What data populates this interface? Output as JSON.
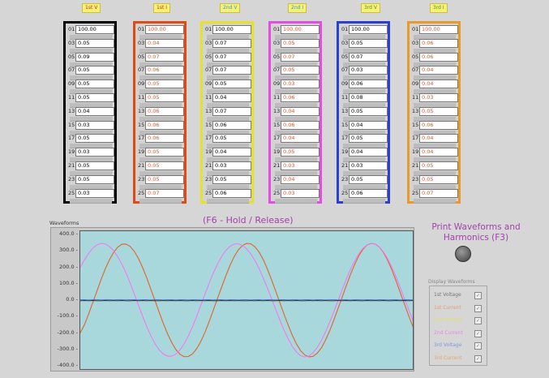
{
  "channels": [
    {
      "key": "v1",
      "label": "1st V",
      "border": "#000000",
      "value_color": "#000000",
      "label_color": "#c23a00",
      "rows": [
        [
          "01",
          "100.00"
        ],
        [
          "03",
          "0.05"
        ],
        [
          "05",
          "0.09"
        ],
        [
          "07",
          "0.05"
        ],
        [
          "09",
          "0.05"
        ],
        [
          "11",
          "0.05"
        ],
        [
          "13",
          "0.04"
        ],
        [
          "15",
          "0.03"
        ],
        [
          "17",
          "0.05"
        ],
        [
          "19",
          "0.03"
        ],
        [
          "21",
          "0.05"
        ],
        [
          "23",
          "0.05"
        ],
        [
          "25",
          "0.03"
        ]
      ]
    },
    {
      "key": "i1",
      "label": "1st I",
      "border": "#e04a16",
      "value_color": "#e2522b",
      "label_color": "#c23a00",
      "rows": [
        [
          "01",
          "100.00"
        ],
        [
          "03",
          "0.04"
        ],
        [
          "05",
          "0.07"
        ],
        [
          "07",
          "0.06"
        ],
        [
          "09",
          "0.05"
        ],
        [
          "11",
          "0.05"
        ],
        [
          "13",
          "0.06"
        ],
        [
          "15",
          "0.06"
        ],
        [
          "17",
          "0.06"
        ],
        [
          "19",
          "0.05"
        ],
        [
          "21",
          "0.05"
        ],
        [
          "23",
          "0.05"
        ],
        [
          "25",
          "0.07"
        ]
      ]
    },
    {
      "key": "v2",
      "label": "2nd V",
      "border": "#e6e12a",
      "value_color": "#000000",
      "label_color": "#2aa0c0",
      "rows": [
        [
          "01",
          "100.00"
        ],
        [
          "03",
          "0.07"
        ],
        [
          "05",
          "0.07"
        ],
        [
          "07",
          "0.07"
        ],
        [
          "09",
          "0.05"
        ],
        [
          "11",
          "0.04"
        ],
        [
          "13",
          "0.07"
        ],
        [
          "15",
          "0.06"
        ],
        [
          "17",
          "0.05"
        ],
        [
          "19",
          "0.04"
        ],
        [
          "21",
          "0.03"
        ],
        [
          "23",
          "0.05"
        ],
        [
          "25",
          "0.06"
        ]
      ]
    },
    {
      "key": "i2",
      "label": "2nd I",
      "border": "#e24fe0",
      "value_color": "#e2522b",
      "label_color": "#2aa0c0",
      "rows": [
        [
          "01",
          "100.00"
        ],
        [
          "03",
          "0.05"
        ],
        [
          "05",
          "0.07"
        ],
        [
          "07",
          "0.05"
        ],
        [
          "09",
          "0.03"
        ],
        [
          "11",
          "0.06"
        ],
        [
          "13",
          "0.04"
        ],
        [
          "15",
          "0.06"
        ],
        [
          "17",
          "0.04"
        ],
        [
          "19",
          "0.05"
        ],
        [
          "21",
          "0.03"
        ],
        [
          "23",
          "0.04"
        ],
        [
          "25",
          "0.03"
        ]
      ]
    },
    {
      "key": "v3",
      "label": "3rd V",
      "border": "#2b3fd6",
      "value_color": "#000000",
      "label_color": "#4a9a20",
      "rows": [
        [
          "01",
          "100.00"
        ],
        [
          "03",
          "0.05"
        ],
        [
          "05",
          "0.07"
        ],
        [
          "07",
          "0.03"
        ],
        [
          "09",
          "0.06"
        ],
        [
          "11",
          "0.08"
        ],
        [
          "13",
          "0.05"
        ],
        [
          "15",
          "0.04"
        ],
        [
          "17",
          "0.05"
        ],
        [
          "19",
          "0.04"
        ],
        [
          "21",
          "0.03"
        ],
        [
          "23",
          "0.05"
        ],
        [
          "25",
          "0.06"
        ]
      ]
    },
    {
      "key": "i3",
      "label": "3rd I",
      "border": "#e89a2a",
      "value_color": "#e2522b",
      "label_color": "#4a9a20",
      "rows": [
        [
          "01",
          "100.00"
        ],
        [
          "03",
          "0.06"
        ],
        [
          "05",
          "0.06"
        ],
        [
          "07",
          "0.04"
        ],
        [
          "09",
          "0.04"
        ],
        [
          "11",
          "0.03"
        ],
        [
          "13",
          "0.05"
        ],
        [
          "15",
          "0.06"
        ],
        [
          "17",
          "0.04"
        ],
        [
          "19",
          "0.04"
        ],
        [
          "21",
          "0.05"
        ],
        [
          "23",
          "0.05"
        ],
        [
          "25",
          "0.07"
        ]
      ]
    }
  ],
  "hold_label": "(F6 - Hold / Release)",
  "waveforms_label": "Waveforms",
  "print_label": "Print Waveforms and Harmonics (F3)",
  "display_waveforms": {
    "title": "Display Waveforms",
    "items": [
      {
        "label": "1st Voltage",
        "color": "#777777",
        "checked": true
      },
      {
        "label": "1st Current",
        "color": "#e39a7a",
        "checked": true
      },
      {
        "label": "2nd Voltage",
        "color": "#e3df6a",
        "checked": true
      },
      {
        "label": "2nd Current",
        "color": "#e38ae3",
        "checked": true
      },
      {
        "label": "3rd Voltage",
        "color": "#7b9ae0",
        "checked": true
      },
      {
        "label": "3rd Current",
        "color": "#e3a66a",
        "checked": true
      }
    ]
  },
  "chart_data": {
    "type": "line",
    "title": "",
    "xlabel": "",
    "ylabel": "",
    "ylim": [
      -400,
      400
    ],
    "yticks": [
      "400.0",
      "300.0",
      "200.0",
      "100.0",
      "0.0",
      "-100.0",
      "-200.0",
      "-300.0",
      "-400.0"
    ],
    "x": [
      0,
      1,
      2,
      3,
      4,
      5,
      6,
      7,
      8,
      9,
      10,
      11,
      12,
      13,
      14,
      15,
      16,
      17,
      18,
      19,
      20,
      21,
      22,
      23,
      24,
      25,
      26,
      27,
      28,
      29,
      30,
      31,
      32,
      33,
      34,
      35,
      36,
      37,
      38,
      39,
      40,
      41,
      42,
      43,
      44,
      45,
      46,
      47,
      48,
      49,
      50,
      51,
      52,
      53,
      54,
      55,
      56,
      57,
      58,
      59,
      60,
      61,
      62,
      63,
      64,
      65,
      66,
      67,
      68,
      69,
      70,
      71,
      72,
      73,
      74,
      75,
      76,
      77,
      78,
      79,
      80
    ],
    "series": [
      {
        "name": "",
        "color": "#e2642a",
        "values": [
          -200,
          -150,
          -85,
          -15,
          55,
          125,
          190,
          245,
          290,
          322,
          340,
          341,
          327,
          297,
          253,
          198,
          135,
          65,
          -5,
          -75,
          -143,
          -205,
          -259,
          -301,
          -330,
          -344,
          -343,
          -327,
          -296,
          -252,
          -196,
          -131,
          -61,
          9,
          79,
          147,
          210,
          263,
          305,
          332,
          345,
          343,
          325,
          293,
          248,
          191,
          126,
          56,
          -14,
          -84,
          -151,
          -213,
          -266,
          -307,
          -334,
          -345,
          -342,
          -324,
          -291,
          -244,
          -187,
          -122,
          -52,
          18,
          88,
          155,
          217,
          269,
          309,
          336,
          345,
          341,
          322,
          288,
          240,
          182,
          116,
          46,
          -24,
          -94,
          -160
        ]
      },
      {
        "name": "",
        "color": "#f07af0",
        "values": [
          200,
          245,
          285,
          316,
          336,
          345,
          342,
          327,
          302,
          265,
          219,
          165,
          104,
          37,
          -31,
          -99,
          -162,
          -218,
          -266,
          -303,
          -328,
          -341,
          -341,
          -328,
          -303,
          -266,
          -218,
          -162,
          -99,
          -31,
          37,
          104,
          165,
          219,
          265,
          302,
          327,
          341,
          343,
          333,
          313,
          282,
          242,
          193,
          137,
          76,
          11,
          -55,
          -120,
          -181,
          -235,
          -281,
          -316,
          -338,
          -346,
          -340,
          -320,
          -288,
          -246,
          -194,
          -135,
          -71,
          -4,
          63,
          127,
          186,
          238,
          282,
          315,
          337,
          346,
          341,
          323,
          292,
          250,
          199,
          140,
          76,
          9,
          -57,
          -122
        ]
      },
      {
        "name": "",
        "color": "#222222",
        "values": [
          -4,
          -3,
          -4,
          -3,
          -4,
          -4,
          -3,
          -4,
          -3,
          -4,
          -3,
          -4,
          -4,
          -3,
          -4,
          -3,
          -4,
          -3,
          -4,
          -4,
          -3,
          -4,
          -3,
          -4,
          -3,
          -4,
          -4,
          -3,
          -4,
          -3,
          -4,
          -3,
          -4,
          -4,
          -3,
          -4,
          -3,
          -4,
          -3,
          -4,
          -4,
          -3,
          -4,
          -3,
          -4,
          -3,
          -4,
          -4,
          -3,
          -4,
          -3,
          -4,
          -3,
          -4,
          -4,
          -3,
          -4,
          -3,
          -4,
          -3,
          -4,
          -4,
          -3,
          -4,
          -3,
          -4,
          -3,
          -4,
          -4,
          -3,
          -4,
          -3,
          -4,
          -3,
          -4,
          -4,
          -3,
          -4,
          -3,
          -4,
          -3
        ]
      },
      {
        "name": "",
        "color": "#3b6bd8",
        "values": [
          2,
          2,
          1,
          2,
          2,
          1,
          2,
          2,
          1,
          2,
          2,
          1,
          2,
          2,
          1,
          2,
          2,
          1,
          2,
          2,
          1,
          2,
          2,
          1,
          2,
          2,
          1,
          2,
          2,
          1,
          2,
          2,
          1,
          2,
          2,
          1,
          2,
          2,
          1,
          2,
          2,
          1,
          2,
          2,
          1,
          2,
          2,
          1,
          2,
          2,
          1,
          2,
          2,
          1,
          2,
          2,
          1,
          2,
          2,
          1,
          2,
          2,
          1,
          2,
          2,
          1,
          2,
          2,
          1,
          2,
          2,
          1,
          2,
          2,
          1,
          2,
          2,
          1,
          2,
          2,
          1
        ]
      }
    ]
  }
}
